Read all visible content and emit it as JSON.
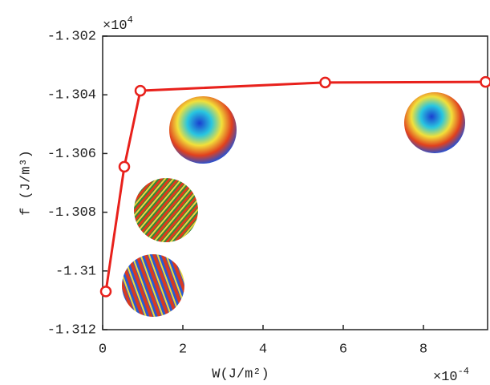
{
  "chart_data": {
    "type": "line",
    "x_label": "W(J/m²)",
    "y_label": "f (J/m³)",
    "x_multiplier": {
      "base": "×10",
      "exponent": "-4"
    },
    "y_multiplier": {
      "base": "×10",
      "exponent": "4"
    },
    "x": [
      0.08,
      0.54,
      0.94,
      5.55,
      9.55
    ],
    "series": [
      {
        "color": "#e8211c",
        "values": [
          -1.3107,
          -1.30645,
          -1.30386,
          -1.30358,
          -1.30356
        ]
      }
    ],
    "xlim": [
      0,
      9.6
    ],
    "xticks": [
      0,
      2,
      4,
      6,
      8
    ],
    "ylim": [
      -1.312,
      -1.302
    ],
    "yticks": [
      -1.312,
      -1.31,
      -1.308,
      -1.306,
      -1.304,
      -1.302
    ],
    "grid": false
  }
}
